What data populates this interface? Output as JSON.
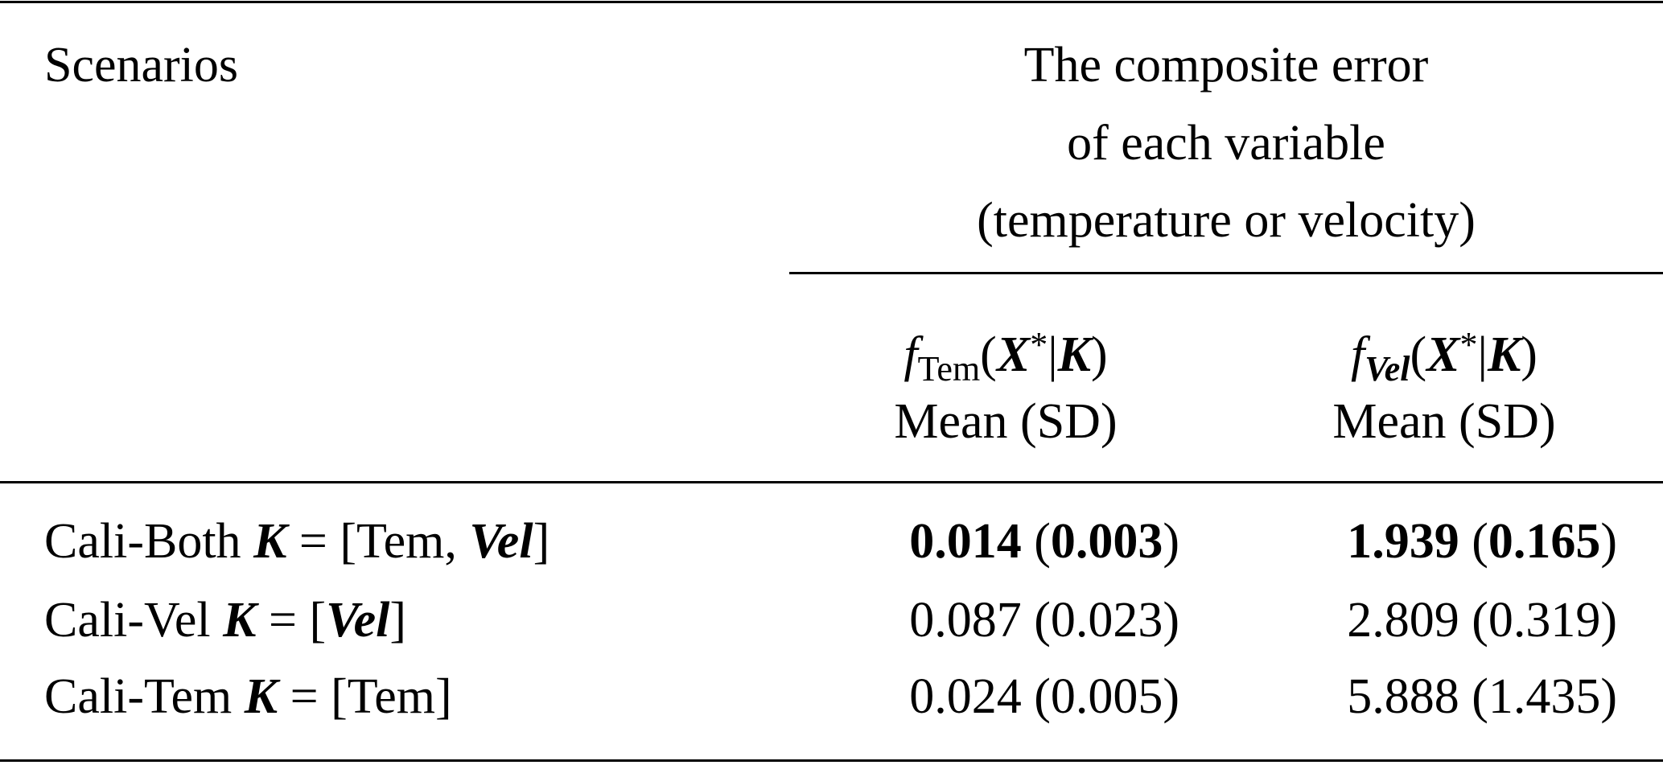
{
  "header": {
    "scenarios": [
      {
        "t": "Scenarios"
      }
    ],
    "group": [
      [
        {
          "t": "The composite error"
        }
      ],
      [
        {
          "t": "of each variable"
        }
      ],
      [
        {
          "t": "(temperature or velocity)"
        }
      ]
    ],
    "columns": [
      {
        "formula": [
          {
            "t": "f",
            "s": "i"
          },
          {
            "t": "Tem",
            "s": "sub"
          },
          {
            "t": "("
          },
          {
            "t": "X",
            "s": "bi"
          },
          {
            "t": "*",
            "s": "sup"
          },
          {
            "t": "|"
          },
          {
            "t": "K",
            "s": "bi"
          },
          {
            "t": ")"
          }
        ],
        "stat": [
          {
            "t": "Mean (SD)"
          }
        ]
      },
      {
        "formula": [
          {
            "t": "f",
            "s": "i"
          },
          {
            "t": "Vel",
            "s": "subbi"
          },
          {
            "t": "("
          },
          {
            "t": "X",
            "s": "bi"
          },
          {
            "t": "*",
            "s": "sup"
          },
          {
            "t": "|"
          },
          {
            "t": "K",
            "s": "bi"
          },
          {
            "t": ")"
          }
        ],
        "stat": [
          {
            "t": "Mean (SD)"
          }
        ]
      }
    ]
  },
  "rows": [
    {
      "cells": [
        [
          {
            "t": "Cali-Both "
          },
          {
            "t": "K",
            "s": "bi"
          },
          {
            "t": " = [Tem, "
          },
          {
            "t": "Vel",
            "s": "bi"
          },
          {
            "t": "]"
          }
        ],
        [
          {
            "t": "0.014",
            "s": "b"
          },
          {
            "t": " ("
          },
          {
            "t": "0.003",
            "s": "b"
          },
          {
            "t": ")"
          }
        ],
        [
          {
            "t": "1.939",
            "s": "b"
          },
          {
            "t": " ("
          },
          {
            "t": "0.165",
            "s": "b"
          },
          {
            "t": ")"
          }
        ]
      ]
    },
    {
      "cells": [
        [
          {
            "t": "Cali-Vel "
          },
          {
            "t": "K",
            "s": "bi"
          },
          {
            "t": " = ["
          },
          {
            "t": "Vel",
            "s": "bi"
          },
          {
            "t": "]"
          }
        ],
        [
          {
            "t": "0.087 (0.023)"
          }
        ],
        [
          {
            "t": "2.809 (0.319)"
          }
        ]
      ]
    },
    {
      "cells": [
        [
          {
            "t": "Cali-Tem "
          },
          {
            "t": "K",
            "s": "bi"
          },
          {
            "t": " = [Tem]"
          }
        ],
        [
          {
            "t": "0.024 (0.005)"
          }
        ],
        [
          {
            "t": "5.888 (1.435)"
          }
        ]
      ]
    }
  ]
}
